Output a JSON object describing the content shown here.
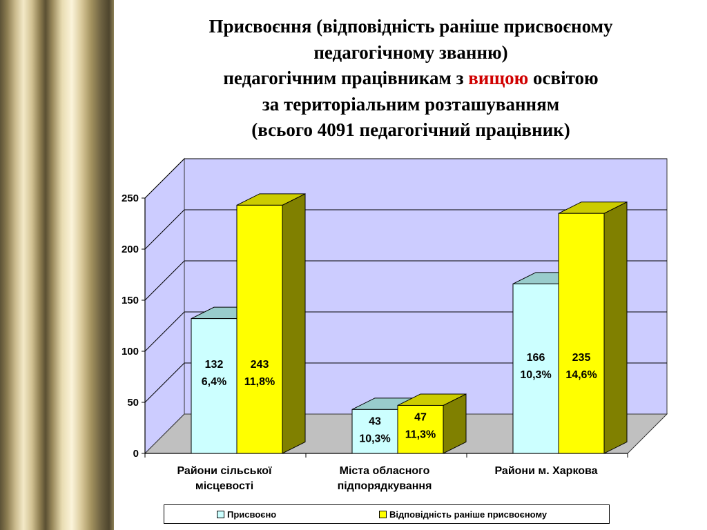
{
  "title": {
    "line1": "Присвоєння (відповідність раніше присвоєному",
    "line2": "педагогічному званню)",
    "line3_before": "педагогічним працівникам з ",
    "line3_highlight": "вищою",
    "line3_after": " освітою",
    "line4": "за територіальним розташуванням",
    "line5": "(всього 4091 педагогічний працівник)"
  },
  "colors": {
    "highlight": "#d00000",
    "series1": "#ccffff",
    "series2": "#ffff00",
    "wall": "#ccccff"
  },
  "chart_data": {
    "type": "bar",
    "categories": [
      [
        "Райони сільської",
        "місцевості"
      ],
      [
        "Міста обласного",
        "підпорядкування"
      ],
      [
        "Райони м. Харкова"
      ]
    ],
    "series": [
      {
        "name": "Присвоєно",
        "values": [
          132,
          43,
          166
        ],
        "labels": [
          [
            "132",
            "6,4%"
          ],
          [
            "43",
            "10,3%"
          ],
          [
            "166",
            "10,3%"
          ]
        ]
      },
      {
        "name": "Відповідність раніше присвоєному",
        "values": [
          243,
          47,
          235
        ],
        "labels": [
          [
            "243",
            "11,8%"
          ],
          [
            "47",
            "11,3%"
          ],
          [
            "235",
            "14,6%"
          ]
        ]
      }
    ],
    "ylim": [
      0,
      250
    ],
    "yticks": [
      "0",
      "50",
      "100",
      "150",
      "200",
      "250"
    ],
    "grid": true,
    "legend_position": "bottom"
  }
}
